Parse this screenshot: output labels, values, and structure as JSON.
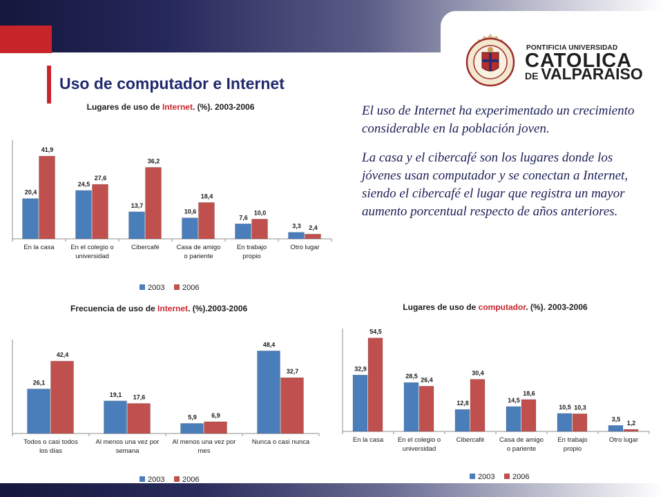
{
  "slide": {
    "title": "Uso de computador e Internet",
    "colors": {
      "accent_red": "#c8252b",
      "title_blue": "#1f2a6e",
      "text_blue": "#1b1e56"
    }
  },
  "logo": {
    "line1": "PONTIFICIA UNIVERSIDAD",
    "line2": "CATOLICA",
    "line3_de": "DE ",
    "line3_main": "VALPARAISO",
    "seal_text": "PONTIFICIA UNIVERSIDAD CATOLICA DE VALPARAISO"
  },
  "body": {
    "p1": "El uso de Internet ha experimentado un crecimiento considerable en la población joven.",
    "p2": "La casa y el cibercafé son los lugares donde los jóvenes usan computador y se conectan a Internet, siendo el cibercafé el lugar que registra un mayor aumento porcentual respecto de años anteriores."
  },
  "chart_titles": {
    "c1": {
      "pre": "Lugares de uso de ",
      "hl": "Internet",
      "post": ". (%). 2003-2006"
    },
    "c2": {
      "pre": "Frecuencia de uso de ",
      "hl": "Internet",
      "post": ". (%).2003-2006"
    },
    "c3": {
      "pre": "Lugares de uso de ",
      "hl": "computador",
      "post": ". (%). 2003-2006"
    }
  },
  "chart_data": [
    {
      "type": "bar",
      "title": "Lugares de uso de Internet. (%). 2003-2006",
      "categories": [
        [
          "En la casa"
        ],
        [
          "En el colegio o",
          "universidad"
        ],
        [
          "Cibercafé"
        ],
        [
          "Casa de amigo",
          "o pariente"
        ],
        [
          "En trabajo",
          "propio"
        ],
        [
          "Otro lugar"
        ]
      ],
      "series": [
        {
          "name": "2003",
          "color": "#4a7ebb",
          "values": [
            20.4,
            24.5,
            13.7,
            10.6,
            7.6,
            3.3
          ],
          "labels": [
            "20,4",
            "24,5",
            "13,7",
            "10,6",
            "7,6",
            "3,3"
          ]
        },
        {
          "name": "2006",
          "color": "#c0504d",
          "values": [
            41.9,
            27.6,
            36.2,
            18.4,
            10.0,
            2.4
          ],
          "labels": [
            "41,9",
            "27,6",
            "36,2",
            "18,4",
            "10,0",
            "2,4"
          ]
        }
      ],
      "ylim": [
        0,
        50
      ],
      "legend": "bottom-center",
      "grid": false
    },
    {
      "type": "bar",
      "title": "Frecuencia de uso de Internet. (%).2003-2006",
      "categories": [
        [
          "Todos o casi todos",
          "los días"
        ],
        [
          "Al menos una vez por",
          "semana"
        ],
        [
          "Al menos una vez por",
          "mes"
        ],
        [
          "Nunca o casi nunca"
        ]
      ],
      "series": [
        {
          "name": "2003",
          "color": "#4a7ebb",
          "values": [
            26.1,
            19.1,
            5.9,
            48.4
          ],
          "labels": [
            "26,1",
            "19,1",
            "5,9",
            "48,4"
          ]
        },
        {
          "name": "2006",
          "color": "#c0504d",
          "values": [
            42.4,
            17.6,
            6.9,
            32.7
          ],
          "labels": [
            "42,4",
            "17,6",
            "6,9",
            "32,7"
          ]
        }
      ],
      "ylim": [
        0,
        55
      ],
      "legend": "bottom-center",
      "grid": false
    },
    {
      "type": "bar",
      "title": "Lugares de uso de computador. (%). 2003-2006",
      "categories": [
        [
          "En la casa"
        ],
        [
          "En el colegio o",
          "universidad"
        ],
        [
          "Cibercafé"
        ],
        [
          "Casa de amigo",
          "o pariente"
        ],
        [
          "En trabajo",
          "propio"
        ],
        [
          "Otro lugar"
        ]
      ],
      "series": [
        {
          "name": "2003",
          "color": "#4a7ebb",
          "values": [
            32.9,
            28.5,
            12.8,
            14.5,
            10.5,
            3.5
          ],
          "labels": [
            "32,9",
            "28,5",
            "12,8",
            "14,5",
            "10,5",
            "3,5"
          ]
        },
        {
          "name": "2006",
          "color": "#c0504d",
          "values": [
            54.5,
            26.4,
            30.4,
            18.6,
            10.3,
            1.2
          ],
          "labels": [
            "54,5",
            "26,4",
            "30,4",
            "18,6",
            "10,3",
            "1,2"
          ]
        }
      ],
      "ylim": [
        0,
        60
      ],
      "legend": "bottom-center",
      "grid": false
    }
  ]
}
